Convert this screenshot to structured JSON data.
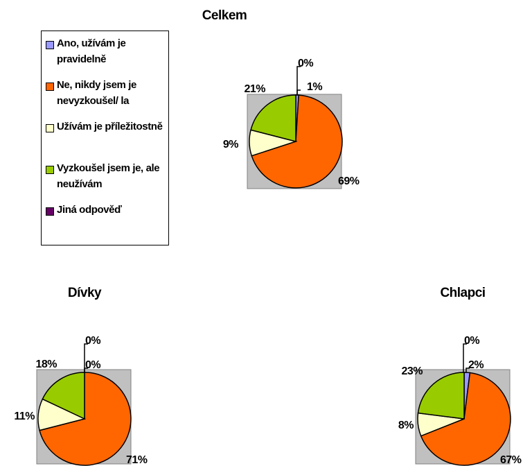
{
  "colors": {
    "background_box": "#c0c0c0",
    "outline": "#000000"
  },
  "chart_data": [
    {
      "type": "pie",
      "title": "Celkem",
      "categories": [
        "Ano, užívám je pravidelně",
        "Ne, nikdy jsem je nevyzkoušel/ la",
        "Užívám je příležitostně",
        "Vyzkoušel jsem je, ale neužívám",
        "Jiná odpověď"
      ],
      "values": [
        1,
        69,
        9,
        21,
        0
      ],
      "labels": [
        "1%",
        "69%",
        "9%",
        "21%",
        "0%"
      ]
    },
    {
      "type": "pie",
      "title": "Dívky",
      "categories": [
        "Ano, užívám je pravidelně",
        "Ne, nikdy jsem je nevyzkoušel/ la",
        "Užívám je příležitostně",
        "Vyzkoušel jsem je, ale neužívám",
        "Jiná odpověď"
      ],
      "values": [
        0,
        71,
        11,
        18,
        0
      ],
      "labels": [
        "0%",
        "71%",
        "11%",
        "18%",
        "0%"
      ]
    },
    {
      "type": "pie",
      "title": "Chlapci",
      "categories": [
        "Ano, užívám je pravidelně",
        "Ne, nikdy jsem je nevyzkoušel/ la",
        "Užívám je příležitostně",
        "Vyzkoušel jsem je, ale neužívám",
        "Jiná odpověď"
      ],
      "values": [
        2,
        67,
        8,
        23,
        0
      ],
      "labels": [
        "2%",
        "67%",
        "8%",
        "23%",
        "0%"
      ]
    }
  ],
  "legend": [
    {
      "label": "Ano, užívám je pravidelně",
      "color": "#9999ff"
    },
    {
      "label": "Ne, nikdy jsem je nevyzkoušel/ la",
      "color": "#ff6600"
    },
    {
      "label": "Užívám je příležitostně",
      "color": "#ffffcc"
    },
    {
      "label": "Vyzkoušel jsem je, ale neužívám",
      "color": "#99cc00"
    },
    {
      "label": "Jiná odpověď",
      "color": "#660066"
    }
  ]
}
